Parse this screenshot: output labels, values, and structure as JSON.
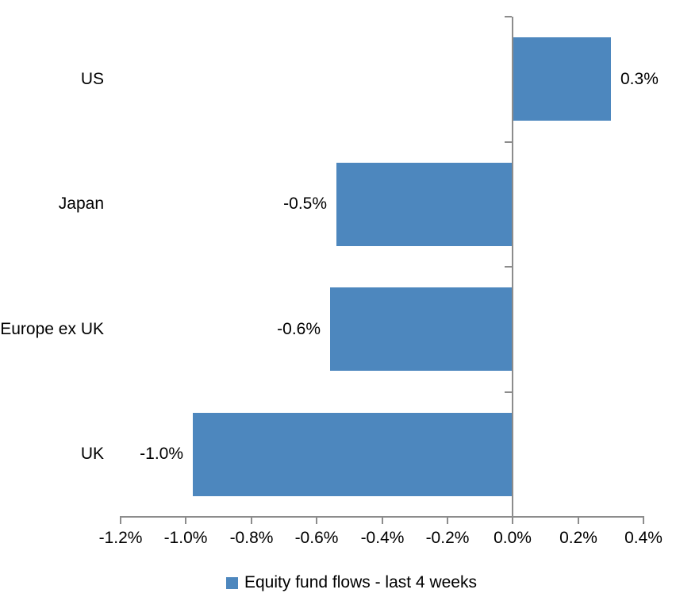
{
  "chart_data": {
    "type": "bar",
    "orientation": "horizontal",
    "title": "",
    "xlabel": "",
    "ylabel": "",
    "categories": [
      "US",
      "Japan",
      "Europe ex UK",
      "UK"
    ],
    "values": [
      0.3,
      -0.5,
      -0.6,
      -1.0
    ],
    "values_render": [
      0.3,
      -0.54,
      -0.56,
      -0.98
    ],
    "data_labels": [
      "0.3%",
      "-0.5%",
      "-0.6%",
      "-1.0%"
    ],
    "series": [
      {
        "name": "Equity fund flows - last 4 weeks",
        "color": "#4D87BE"
      }
    ],
    "xlim": [
      -1.2,
      0.4
    ],
    "x_tick_step": 0.2,
    "x_tick_labels": [
      "-1.2%",
      "-1.0%",
      "-0.8%",
      "-0.6%",
      "-0.4%",
      "-0.2%",
      "0.0%",
      "0.2%",
      "0.4%"
    ],
    "grid": false,
    "legend_position": "bottom",
    "colors": {
      "bar": "#4D87BE",
      "axis": "#8C8C8C",
      "text": "#000000",
      "background": "#FFFFFF"
    }
  },
  "legend": {
    "label": "Equity fund flows - last 4 weeks",
    "swatch_color": "#4D87BE"
  }
}
